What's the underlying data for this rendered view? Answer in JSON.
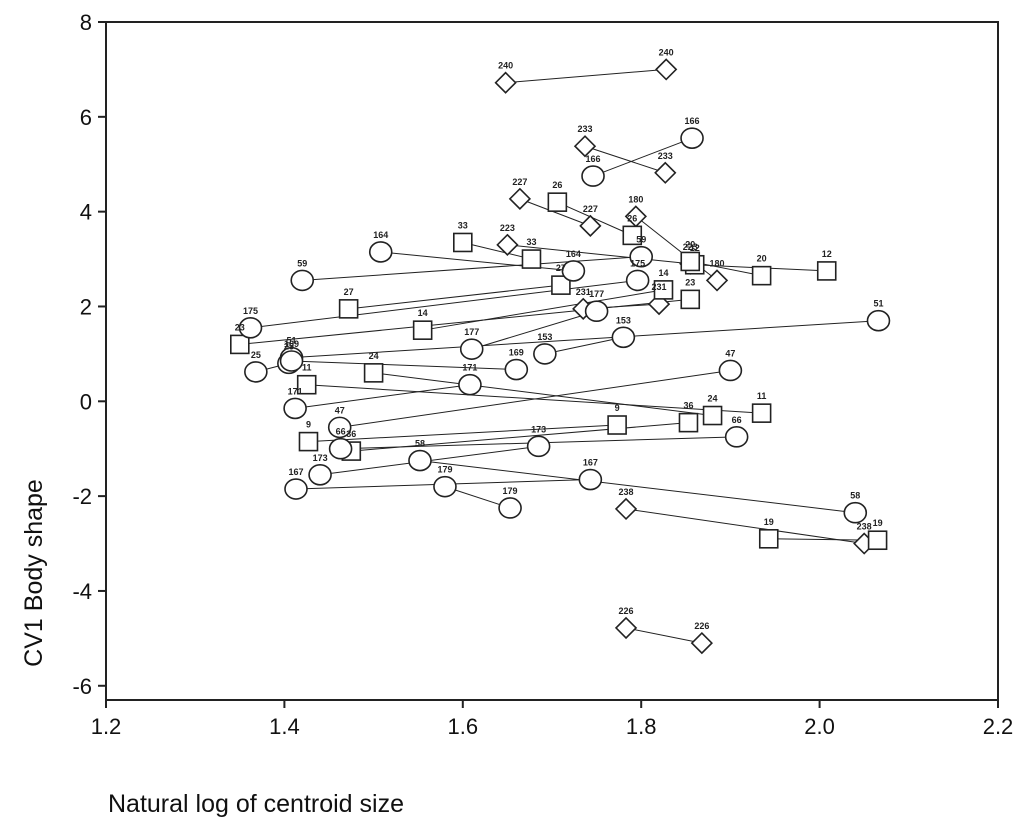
{
  "chart_data": {
    "type": "scatter",
    "xlabel": "Natural log of centroid size",
    "ylabel": "CV1 Body shape",
    "xlim": [
      1.2,
      2.2
    ],
    "ylim": [
      -6.3,
      8
    ],
    "x_ticks": [
      "1.2",
      "1.4",
      "1.6",
      "1.8",
      "2.0",
      "2.2"
    ],
    "y_ticks": [
      "-6",
      "-4",
      "-2",
      "0",
      "2",
      "4",
      "6",
      "8"
    ],
    "grid": false,
    "legend": "none",
    "marker_color": "#222222",
    "series": [
      {
        "marker": "diamond",
        "pairs": [
          {
            "id": "240",
            "points": [
              [
                1.648,
                6.72
              ],
              [
                1.828,
                7.0
              ]
            ]
          },
          {
            "id": "233",
            "points": [
              [
                1.737,
                5.38
              ],
              [
                1.827,
                4.82
              ]
            ]
          },
          {
            "id": "227",
            "points": [
              [
                1.664,
                4.27
              ],
              [
                1.743,
                3.7
              ]
            ]
          },
          {
            "id": "180",
            "points": [
              [
                1.794,
                3.9
              ],
              [
                1.885,
                2.55
              ]
            ]
          },
          {
            "id": "223",
            "points": [
              [
                1.65,
                3.3
              ],
              [
                1.855,
                2.9
              ]
            ]
          },
          {
            "id": "231",
            "points": [
              [
                1.735,
                1.95
              ],
              [
                1.82,
                2.05
              ]
            ]
          },
          {
            "id": "238",
            "points": [
              [
                1.783,
                -2.27
              ],
              [
                2.05,
                -3.0
              ]
            ]
          },
          {
            "id": "226",
            "points": [
              [
                1.783,
                -4.78
              ],
              [
                1.868,
                -5.1
              ]
            ]
          }
        ]
      },
      {
        "marker": "square",
        "pairs": [
          {
            "id": "26",
            "points": [
              [
                1.706,
                4.2
              ],
              [
                1.79,
                3.5
              ]
            ]
          },
          {
            "id": "33",
            "points": [
              [
                1.6,
                3.35
              ],
              [
                1.677,
                3.0
              ]
            ]
          },
          {
            "id": "12",
            "points": [
              [
                1.86,
                2.88
              ],
              [
                2.008,
                2.75
              ]
            ]
          },
          {
            "id": "20",
            "points": [
              [
                1.855,
                2.95
              ],
              [
                1.935,
                2.65
              ]
            ]
          },
          {
            "id": "27",
            "points": [
              [
                1.472,
                1.95
              ],
              [
                1.71,
                2.45
              ]
            ]
          },
          {
            "id": "14",
            "points": [
              [
                1.555,
                1.5
              ],
              [
                1.825,
                2.35
              ]
            ]
          },
          {
            "id": "23",
            "points": [
              [
                1.35,
                1.2
              ],
              [
                1.855,
                2.15
              ]
            ]
          },
          {
            "id": "24",
            "points": [
              [
                1.5,
                0.6
              ],
              [
                1.88,
                -0.3
              ]
            ]
          },
          {
            "id": "11",
            "points": [
              [
                1.425,
                0.35
              ],
              [
                1.935,
                -0.25
              ]
            ]
          },
          {
            "id": "36",
            "points": [
              [
                1.475,
                -1.05
              ],
              [
                1.853,
                -0.45
              ]
            ]
          },
          {
            "id": "9",
            "points": [
              [
                1.427,
                -0.85
              ],
              [
                1.773,
                -0.5
              ]
            ]
          },
          {
            "id": "19",
            "points": [
              [
                1.943,
                -2.9
              ],
              [
                2.065,
                -2.93
              ]
            ]
          }
        ]
      },
      {
        "marker": "circle",
        "pairs": [
          {
            "id": "166",
            "points": [
              [
                1.746,
                4.75
              ],
              [
                1.857,
                5.55
              ]
            ]
          },
          {
            "id": "164",
            "points": [
              [
                1.508,
                3.15
              ],
              [
                1.724,
                2.75
              ]
            ]
          },
          {
            "id": "59",
            "points": [
              [
                1.42,
                2.55
              ],
              [
                1.8,
                3.05
              ]
            ]
          },
          {
            "id": "175",
            "points": [
              [
                1.362,
                1.55
              ],
              [
                1.796,
                2.55
              ]
            ]
          },
          {
            "id": "51",
            "points": [
              [
                1.408,
                0.92
              ],
              [
                2.066,
                1.7
              ]
            ]
          },
          {
            "id": "177",
            "points": [
              [
                1.61,
                1.1
              ],
              [
                1.75,
                1.9
              ]
            ]
          },
          {
            "id": "153",
            "points": [
              [
                1.692,
                1.0
              ],
              [
                1.78,
                1.35
              ]
            ]
          },
          {
            "id": "25",
            "points": [
              [
                1.368,
                0.62
              ],
              [
                1.405,
                0.8
              ]
            ]
          },
          {
            "id": "169",
            "points": [
              [
                1.66,
                0.67
              ],
              [
                1.408,
                0.85
              ]
            ]
          },
          {
            "id": "171",
            "points": [
              [
                1.412,
                -0.15
              ],
              [
                1.608,
                0.35
              ]
            ]
          },
          {
            "id": "47",
            "points": [
              [
                1.462,
                -0.55
              ],
              [
                1.9,
                0.65
              ]
            ]
          },
          {
            "id": "173",
            "points": [
              [
                1.44,
                -1.55
              ],
              [
                1.685,
                -0.95
              ]
            ]
          },
          {
            "id": "58",
            "points": [
              [
                1.552,
                -1.25
              ],
              [
                2.04,
                -2.35
              ]
            ]
          },
          {
            "id": "167",
            "points": [
              [
                1.413,
                -1.85
              ],
              [
                1.743,
                -1.65
              ]
            ]
          },
          {
            "id": "179",
            "points": [
              [
                1.58,
                -1.8
              ],
              [
                1.653,
                -2.25
              ]
            ]
          },
          {
            "id": "66",
            "points": [
              [
                1.463,
                -1.0
              ],
              [
                1.907,
                -0.75
              ]
            ]
          }
        ]
      }
    ]
  }
}
